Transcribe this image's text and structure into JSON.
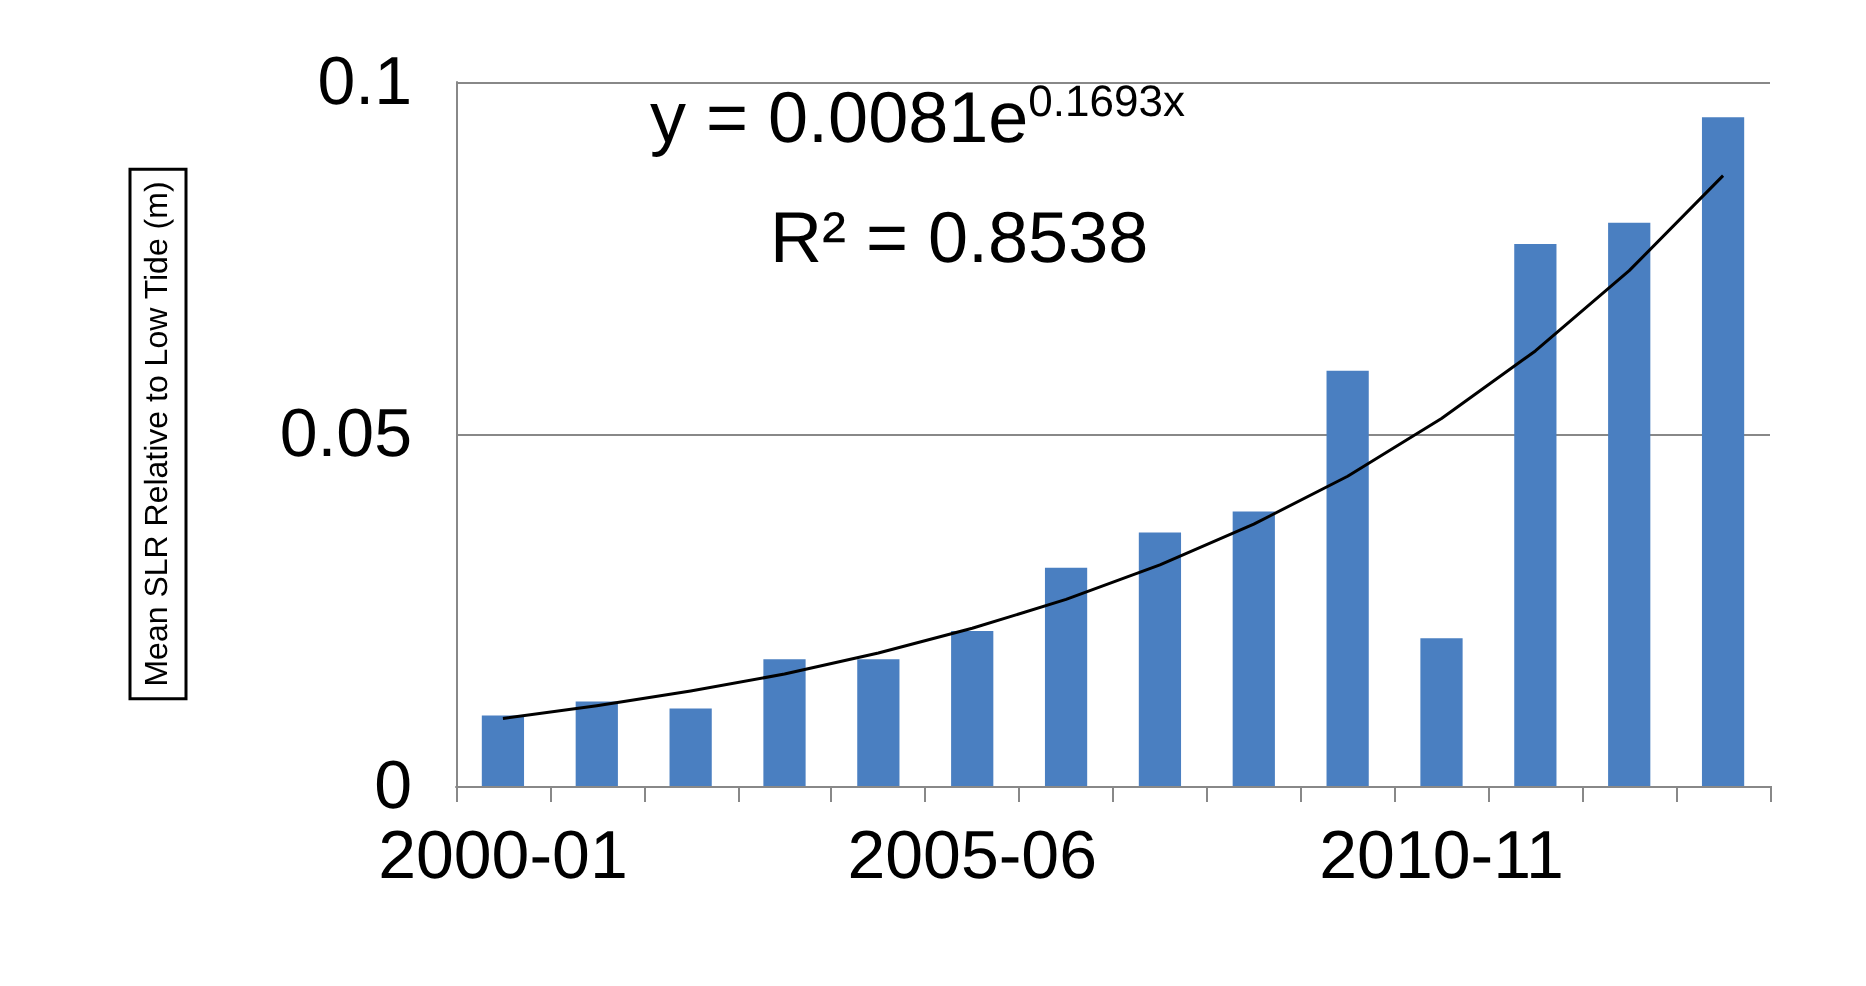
{
  "chart_data": {
    "type": "bar",
    "ylabel": "Mean SLR Relative to Low Tide (m)",
    "categories": [
      "2000-01",
      null,
      null,
      null,
      null,
      "2005-06",
      null,
      null,
      null,
      null,
      "2010-11",
      null,
      null,
      null
    ],
    "series": [
      {
        "color": "#4a7fc1",
        "values": [
          0.01,
          0.012,
          0.011,
          0.018,
          0.018,
          0.022,
          0.031,
          0.036,
          0.039,
          0.059,
          0.021,
          0.077,
          0.08,
          0.095
        ]
      },
      {
        "type": "line",
        "color": "#000000",
        "marker": "none",
        "values": [
          0.0096,
          0.0114,
          0.0135,
          0.0159,
          0.0189,
          0.0224,
          0.0265,
          0.0314,
          0.0372,
          0.044,
          0.0522,
          0.0618,
          0.0732,
          0.0867
        ]
      }
    ],
    "ylim": [
      0,
      0.1
    ],
    "yticks": [
      0,
      0.05,
      0.1
    ],
    "grid": "y",
    "annotations": [
      "y = 0.0081e$^{0.1693x}$",
      "R² = 0.8538"
    ]
  }
}
